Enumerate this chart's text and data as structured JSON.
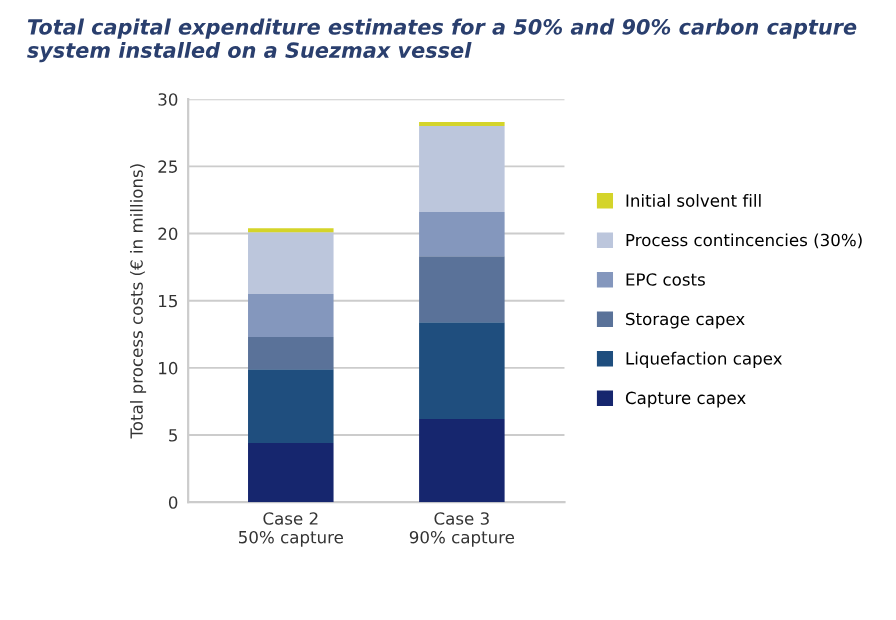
{
  "chart_data": {
    "type": "bar",
    "stacked": true,
    "title": "Total capital expenditure estimates for a 50% and 90% carbon capture system installed on a Suezmax vessel",
    "ylabel": "Total process costs (€ in millions)",
    "categories": [
      "Case 2\n50% capture",
      "Case 3\n90% capture"
    ],
    "series": [
      {
        "name": "Capture capex",
        "color": "#16266e",
        "values": [
          4.4,
          6.2
        ]
      },
      {
        "name": "Liquefaction capex",
        "color": "#1f4e7e",
        "values": [
          5.5,
          7.2
        ]
      },
      {
        "name": "Storage capex",
        "color": "#5a7299",
        "values": [
          2.4,
          4.9
        ]
      },
      {
        "name": "EPC costs",
        "color": "#8497bd",
        "values": [
          3.2,
          3.3
        ]
      },
      {
        "name": "Process contincencies (30%)",
        "color": "#bcc6dc",
        "values": [
          4.6,
          6.4
        ]
      },
      {
        "name": "Initial solvent fill",
        "color": "#d4d42a",
        "values": [
          0.3,
          0.3
        ]
      }
    ],
    "ylim": [
      0,
      30
    ],
    "yticks": [
      0,
      5,
      10,
      15,
      20,
      25,
      30
    ],
    "grid": "y",
    "legend": "right"
  }
}
